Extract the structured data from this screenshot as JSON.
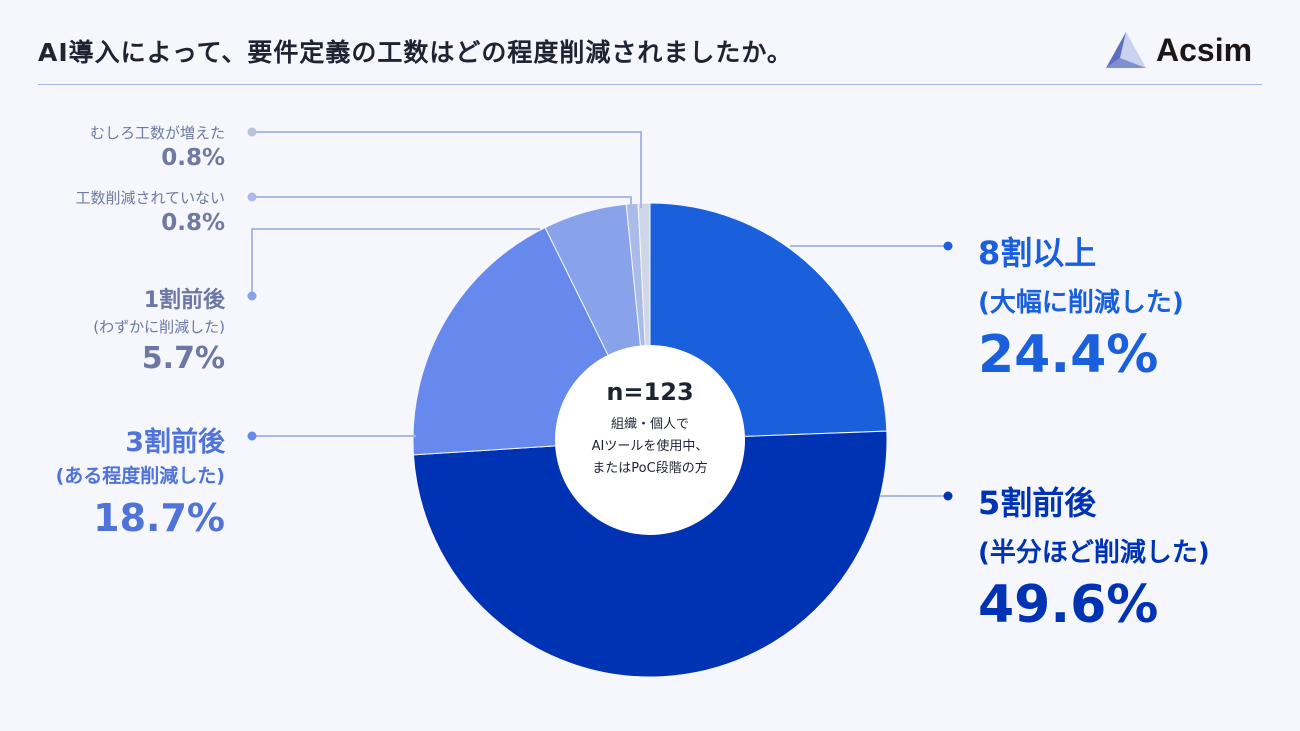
{
  "title": "AI導入によって、要件定義の工数はどの程度削減されましたか。",
  "logo": {
    "text": "Acsim"
  },
  "center": {
    "n": "n=123",
    "lines": [
      "組織・個人で",
      "AIツールを使用中、",
      "またはPoC段階の方"
    ]
  },
  "colors": {
    "bg": "#f5f7fc",
    "s1": "#1a5fdc",
    "s2": "#0033b3",
    "s3": "#6789ee",
    "s4": "#88a3ea",
    "s5": "#aabbe7",
    "s6": "#cfd7e6",
    "leader": "#a9b8e6"
  },
  "chart_data": {
    "type": "pie",
    "donut": true,
    "title": "AI導入によって、要件定義の工数はどの程度削減されましたか。",
    "slices": [
      {
        "label": "8割以上",
        "sub": "(大幅に削減した)",
        "value": 24.4,
        "text": "24.4%"
      },
      {
        "label": "5割前後",
        "sub": "(半分ほど削減した)",
        "value": 49.6,
        "text": "49.6%"
      },
      {
        "label": "3割前後",
        "sub": "(ある程度削減した)",
        "value": 18.7,
        "text": "18.7%"
      },
      {
        "label": "1割前後",
        "sub": "(わずかに削減した)",
        "value": 5.7,
        "text": "5.7%"
      },
      {
        "label": "工数削減されていない",
        "sub": "",
        "value": 0.8,
        "text": "0.8%"
      },
      {
        "label": "むしろ工数が増えた",
        "sub": "",
        "value": 0.8,
        "text": "0.8%"
      }
    ]
  }
}
